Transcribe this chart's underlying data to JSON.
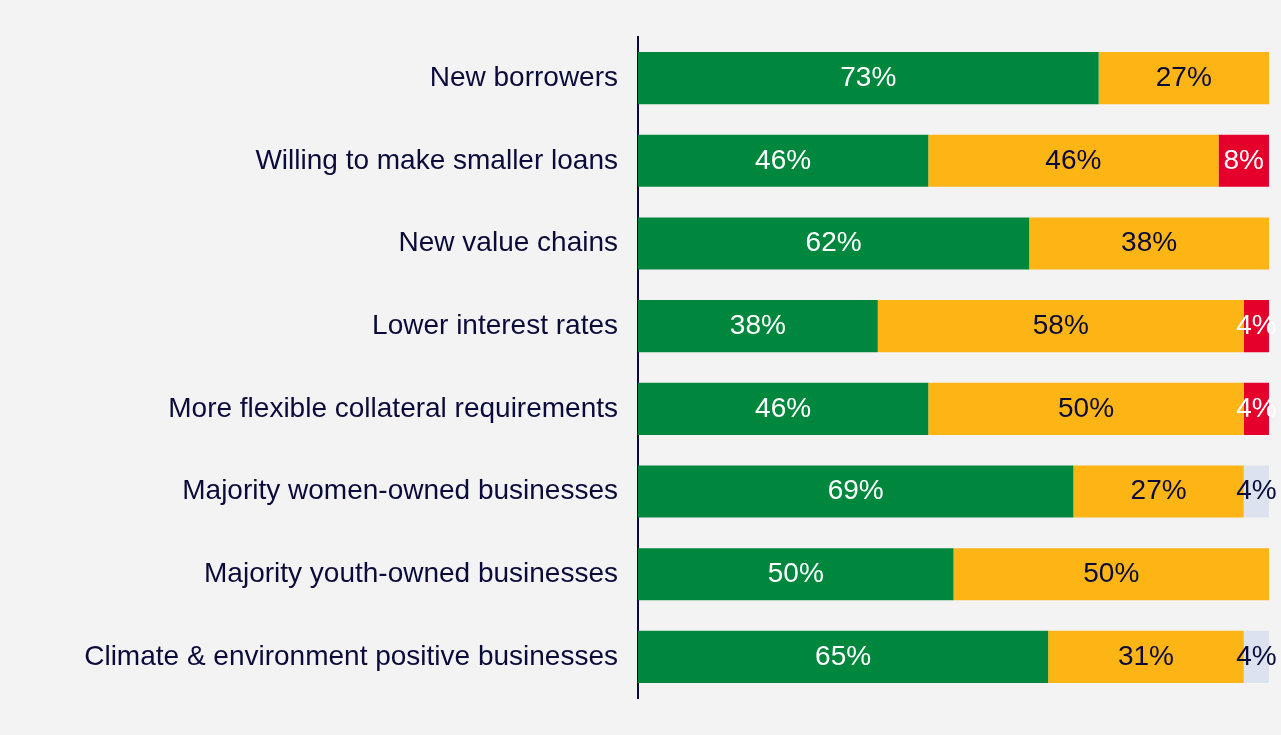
{
  "chart_data": {
    "type": "bar",
    "orientation": "horizontal",
    "stacked": true,
    "legend": false,
    "tick_labels": "y",
    "categories": [
      "New borrowers",
      "Willing to make smaller loans",
      "New value chains",
      "Lower interest rates",
      "More flexible collateral requirements",
      "Majority women-owned businesses",
      "Majority youth-owned businesses",
      "Climate & environment positive businesses"
    ],
    "series": [
      {
        "color": "#00873e",
        "values": [
          73,
          46,
          62,
          38,
          46,
          69,
          50,
          65
        ],
        "value_labels": [
          "73%",
          "46%",
          "62%",
          "38%",
          "46%",
          "69%",
          "50%",
          "65%"
        ]
      },
      {
        "color": "#fdb515",
        "values": [
          27,
          46,
          38,
          58,
          50,
          27,
          50,
          31
        ],
        "value_labels": [
          "27%",
          "46%",
          "38%",
          "58%",
          "50%",
          "27%",
          "50%",
          "31%"
        ]
      },
      {
        "color": "#e4002b",
        "values": [
          null,
          8,
          null,
          4,
          4,
          null,
          null,
          null
        ],
        "value_labels": [
          null,
          "8%",
          null,
          "4%",
          "4%",
          null,
          null,
          null
        ]
      },
      {
        "color": "#dde3ee",
        "values": [
          null,
          null,
          null,
          null,
          null,
          4,
          null,
          4
        ],
        "value_labels": [
          null,
          null,
          null,
          null,
          null,
          "4%",
          null,
          "4%"
        ]
      }
    ]
  }
}
